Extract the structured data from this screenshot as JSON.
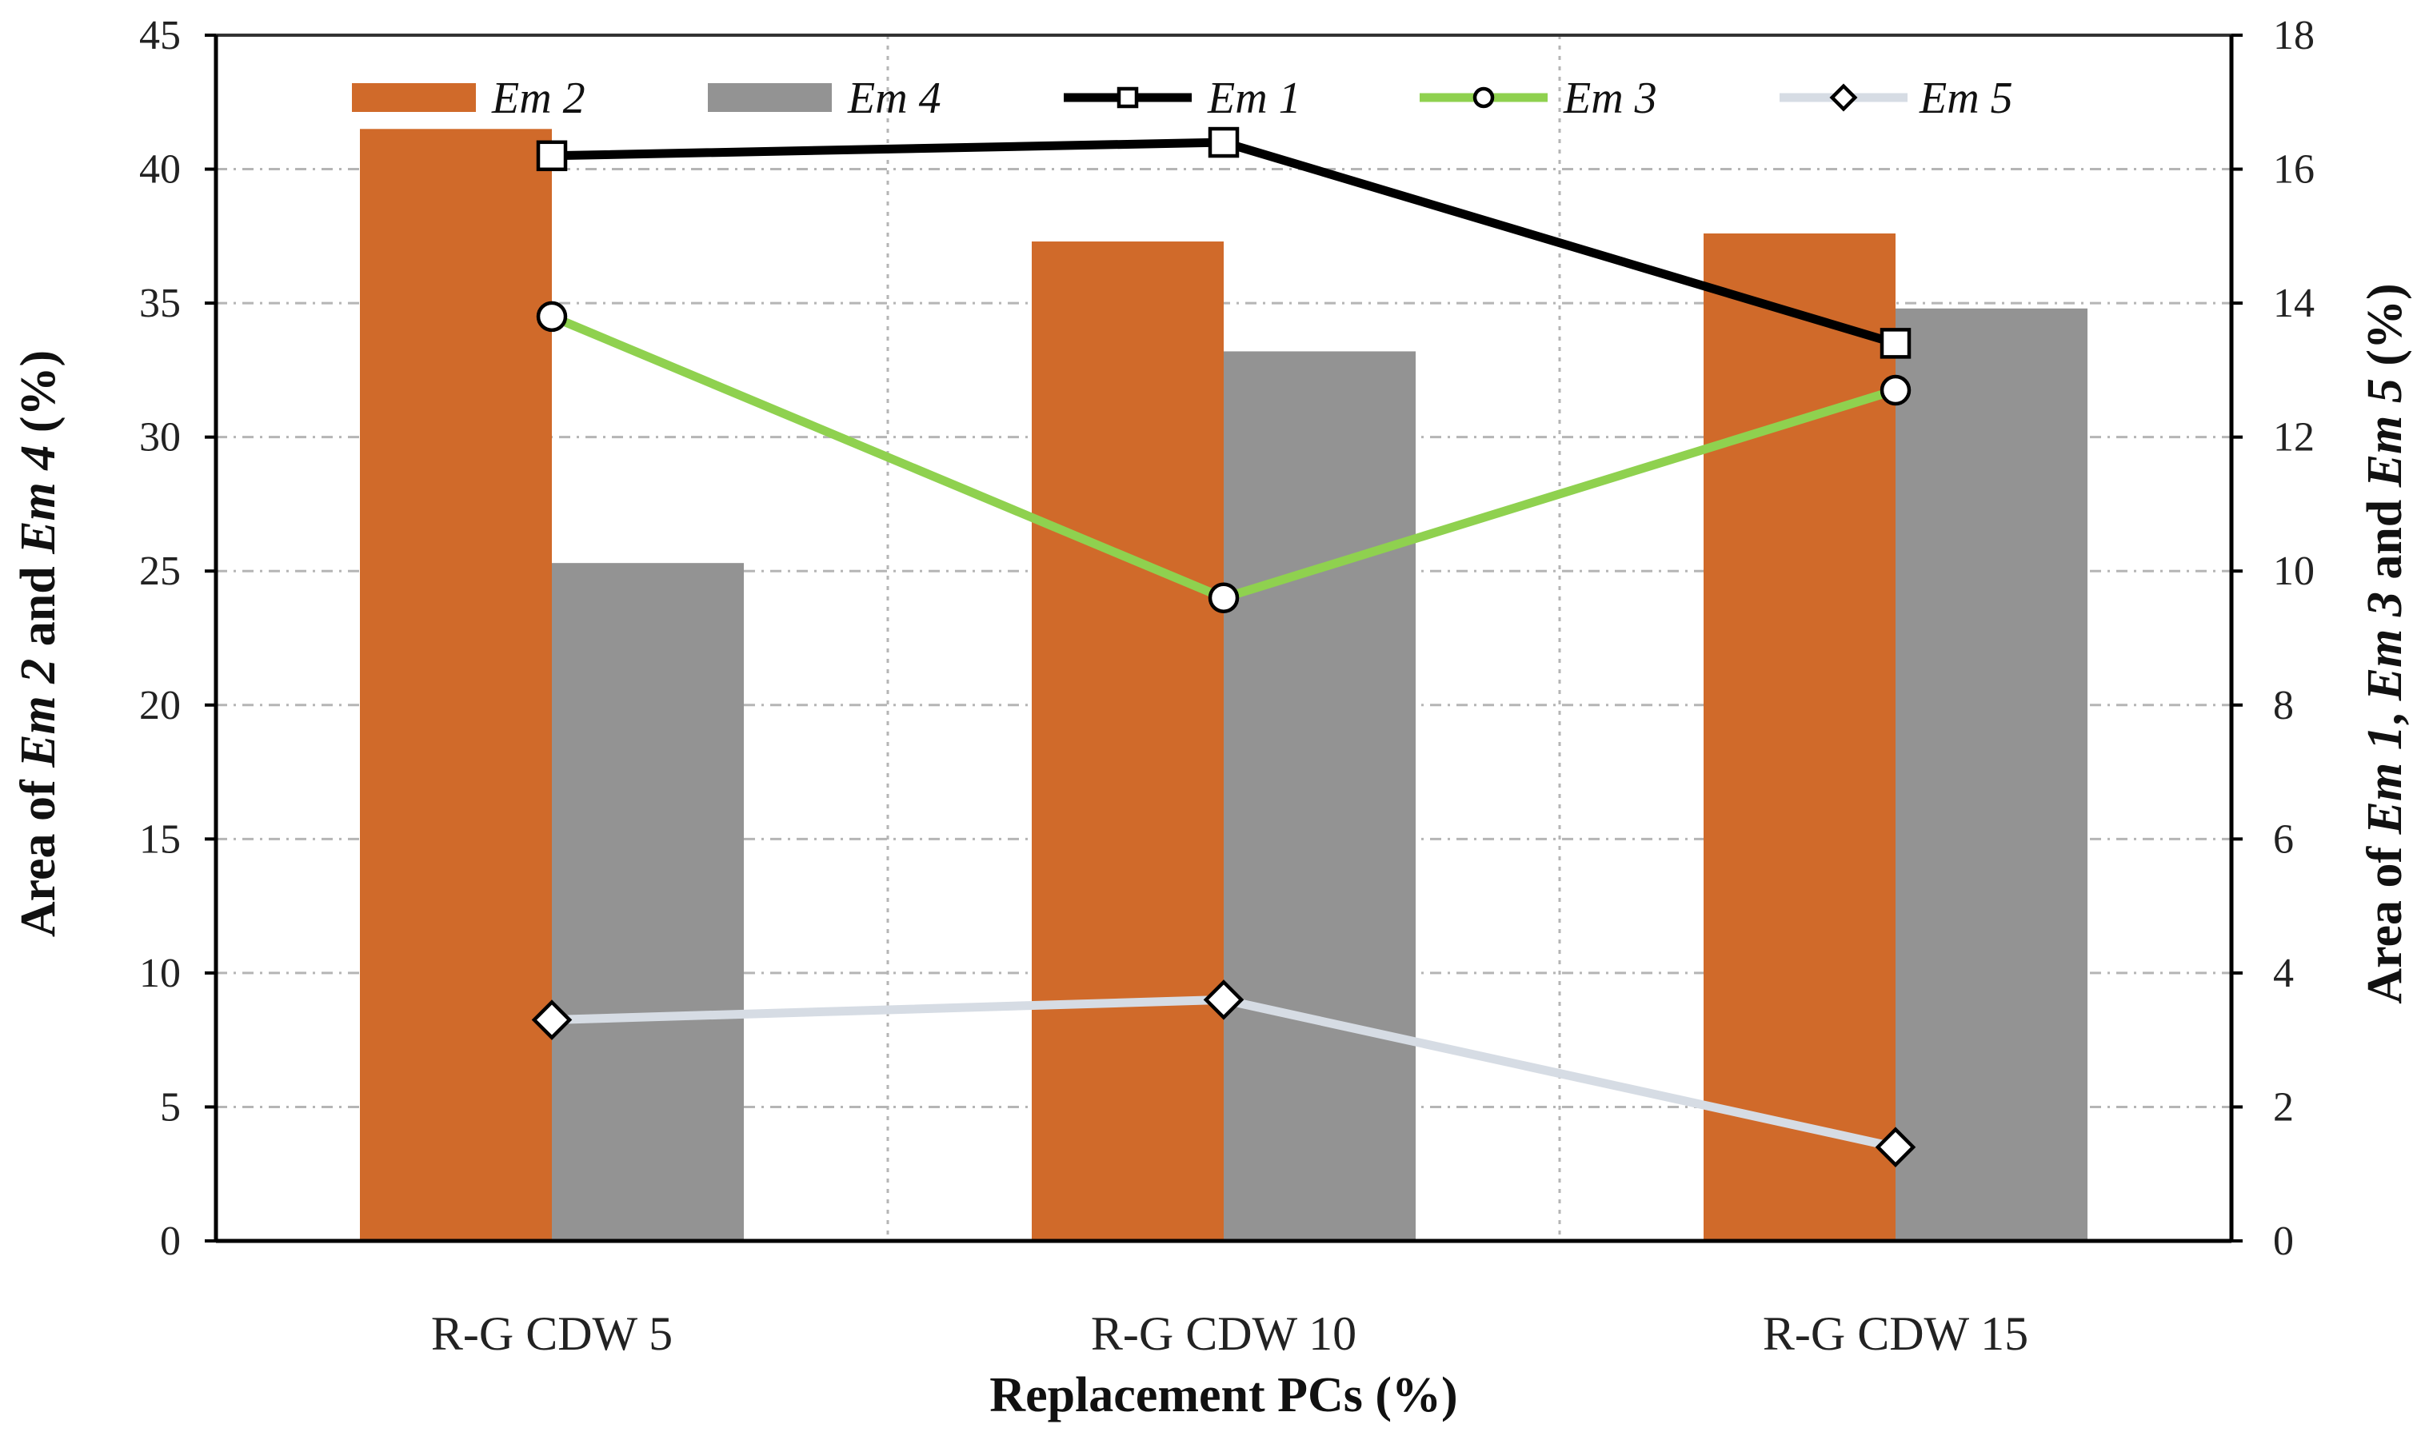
{
  "chart_data": {
    "type": "bar+line",
    "categories": [
      "R-G CDW 5",
      "R-G CDW 10",
      "R-G CDW 15"
    ],
    "xlabel": "Replacement PCs (%)",
    "ylabel_left": {
      "prefix": "Area of ",
      "s1": "Em 2",
      "mid": " and ",
      "s2": "Em 4",
      "suffix": " (%)"
    },
    "ylabel_right": {
      "prefix": "Area of ",
      "s1": "Em 1",
      "sep1": ", ",
      "s2": "Em 3",
      "mid": " and ",
      "s3": "Em 5",
      "suffix": " (%)"
    },
    "y_left": {
      "min": 0,
      "max": 45,
      "step": 5
    },
    "y_right": {
      "min": 0,
      "max": 18,
      "step": 2
    },
    "grid": true,
    "legend_position": "top",
    "bar_series": [
      {
        "name": "Em 2",
        "values": [
          41.5,
          37.3,
          37.6
        ],
        "color": "#d06a2a",
        "axis": "left"
      },
      {
        "name": "Em 4",
        "values": [
          25.3,
          33.2,
          34.8
        ],
        "color": "#939393",
        "axis": "left"
      }
    ],
    "line_series": [
      {
        "name": "Em 1",
        "values": [
          16.2,
          16.4,
          13.4
        ],
        "color": "#000000",
        "marker": "square",
        "axis": "right"
      },
      {
        "name": "Em 3",
        "values": [
          13.8,
          9.6,
          12.7
        ],
        "color": "#8fd14f",
        "marker": "circle",
        "axis": "right"
      },
      {
        "name": "Em 5",
        "values": [
          3.3,
          3.6,
          1.4
        ],
        "color": "#d6dce4",
        "marker": "diamond",
        "axis": "right"
      }
    ],
    "legend_order": [
      "Em 2",
      "Em 4",
      "Em 1",
      "Em 3",
      "Em 5"
    ]
  }
}
